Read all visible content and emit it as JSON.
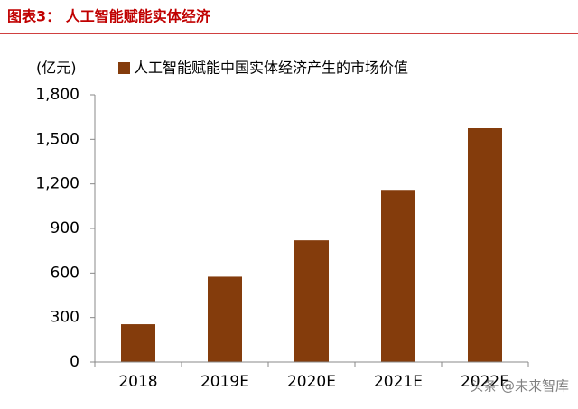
{
  "chart_data": {
    "type": "bar",
    "title": "图表3：  人工智能赋能实体经济",
    "y_axis_label": "(亿元)",
    "series": [
      {
        "name": "人工智能赋能中国实体经济产生的市场价值",
        "color": "#843c0c",
        "values": [
          255,
          575,
          820,
          1160,
          1575
        ]
      }
    ],
    "categories": [
      "2018",
      "2019E",
      "2020E",
      "2021E",
      "2022E"
    ],
    "ylim": [
      0,
      1800
    ],
    "yticks": [
      0,
      300,
      600,
      900,
      {
        "value": 1200,
        "label": "1,200"
      },
      {
        "value": 1500,
        "label": "1,500"
      },
      {
        "value": 1800,
        "label": "1,800"
      }
    ],
    "watermark": "头条 @未来智库"
  }
}
